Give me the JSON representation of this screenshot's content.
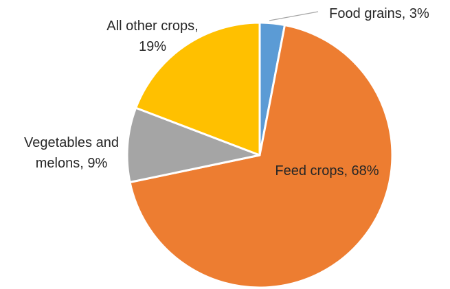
{
  "chart_data": {
    "type": "pie",
    "title": "",
    "start_angle_deg": 0,
    "direction": "clockwise",
    "slices": [
      {
        "name": "Food grains",
        "value": 3,
        "color": "#5B9BD5",
        "label_lines": [
          "Food grains, 3%"
        ],
        "label_position": "outside-leader"
      },
      {
        "name": "Feed crops",
        "value": 68,
        "color": "#ED7D31",
        "label_lines": [
          "Feed crops, 68%"
        ],
        "label_position": "inside"
      },
      {
        "name": "Vegetables and melons",
        "value": 9,
        "color": "#A5A5A5",
        "label_lines": [
          "Vegetables and",
          "melons, 9%"
        ],
        "label_position": "outside"
      },
      {
        "name": "All other crops",
        "value": 19,
        "color": "#FFC000",
        "label_lines": [
          "All other crops,",
          "19%"
        ],
        "label_position": "outside"
      }
    ],
    "legend": "none",
    "leader_line_color": "#A6A6A6",
    "slice_border_color": "#FFFFFF"
  }
}
